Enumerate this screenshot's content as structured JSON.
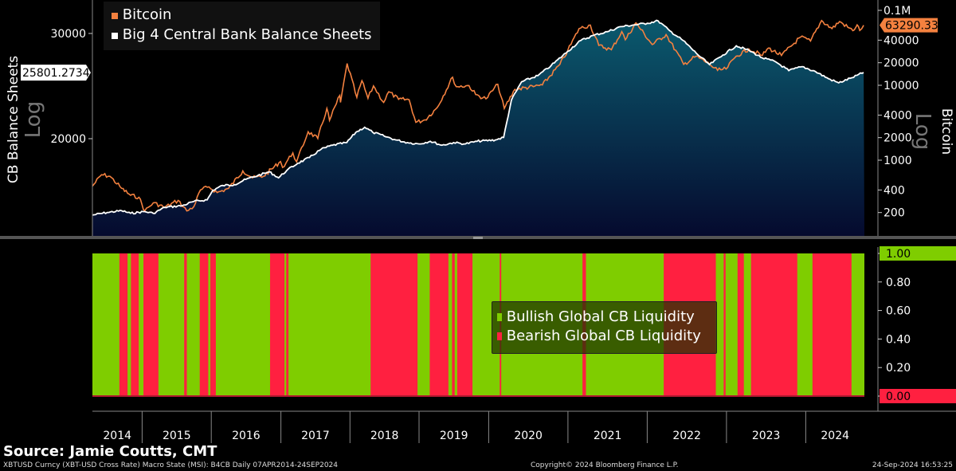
{
  "chart_data": [
    {
      "type": "line",
      "panel": "top",
      "legend": [
        "Bitcoin",
        "Big 4 Central Bank Balance Sheets"
      ],
      "legend_placement": "top-left",
      "left_axis": {
        "label": "CB Balance Sheets",
        "scale_label": "Log",
        "scale": "log",
        "ticks": [
          "30000",
          "20000"
        ],
        "range": [
          13750,
          33600
        ],
        "current_value_label": "25801.2734"
      },
      "right_axis": {
        "label": "Bitcoin",
        "scale_label": "Log",
        "scale": "log",
        "ticks": [
          "0.1M",
          "40000",
          "20000",
          "10000",
          "4000",
          "2000",
          "1000",
          "400",
          "200"
        ],
        "range": [
          98,
          122000
        ],
        "current_value_label": "63290.33"
      },
      "colors": {
        "bitcoin": "#f4813f",
        "cb": "#ffffff",
        "cb_fill_top": "#0b5a6e",
        "cb_fill_bottom": "#050a2e"
      },
      "series": [
        {
          "name": "Bitcoin",
          "axis": "right",
          "points": [
            [
              "2014-04-07",
              450
            ],
            [
              "2014-06-01",
              640
            ],
            [
              "2014-07-15",
              610
            ],
            [
              "2014-09-15",
              420
            ],
            [
              "2014-11-01",
              340
            ],
            [
              "2014-12-15",
              320
            ],
            [
              "2015-01-15",
              210
            ],
            [
              "2015-03-01",
              270
            ],
            [
              "2015-05-01",
              235
            ],
            [
              "2015-07-10",
              290
            ],
            [
              "2015-08-25",
              210
            ],
            [
              "2015-10-01",
              240
            ],
            [
              "2015-11-05",
              400
            ],
            [
              "2015-12-20",
              440
            ],
            [
              "2016-02-01",
              370
            ],
            [
              "2016-04-01",
              420
            ],
            [
              "2016-06-15",
              720
            ],
            [
              "2016-08-05",
              580
            ],
            [
              "2016-10-01",
              610
            ],
            [
              "2016-12-30",
              960
            ],
            [
              "2017-01-10",
              800
            ],
            [
              "2017-03-05",
              1250
            ],
            [
              "2017-03-25",
              950
            ],
            [
              "2017-05-25",
              2400
            ],
            [
              "2017-07-15",
              1950
            ],
            [
              "2017-09-01",
              4900
            ],
            [
              "2017-09-15",
              3400
            ],
            [
              "2017-11-08",
              7300
            ],
            [
              "2017-11-12",
              5900
            ],
            [
              "2017-12-17",
              19500
            ],
            [
              "2018-02-06",
              6900
            ],
            [
              "2018-03-05",
              11500
            ],
            [
              "2018-04-06",
              6700
            ],
            [
              "2018-05-05",
              9800
            ],
            [
              "2018-06-28",
              5900
            ],
            [
              "2018-07-25",
              8200
            ],
            [
              "2018-09-15",
              6500
            ],
            [
              "2018-11-10",
              6400
            ],
            [
              "2018-12-15",
              3200
            ],
            [
              "2019-02-01",
              3450
            ],
            [
              "2019-04-05",
              5000
            ],
            [
              "2019-06-26",
              12800
            ],
            [
              "2019-07-15",
              9600
            ],
            [
              "2019-09-20",
              9900
            ],
            [
              "2019-10-25",
              7500
            ],
            [
              "2019-12-18",
              6600
            ],
            [
              "2020-02-12",
              10300
            ],
            [
              "2020-03-13",
              4900
            ],
            [
              "2020-05-01",
              8800
            ],
            [
              "2020-07-25",
              9600
            ],
            [
              "2020-09-05",
              10100
            ],
            [
              "2020-11-25",
              19000
            ],
            [
              "2020-12-31",
              29000
            ],
            [
              "2021-02-21",
              57000
            ],
            [
              "2021-04-14",
              63500
            ],
            [
              "2021-05-23",
              34000
            ],
            [
              "2021-07-20",
              29800
            ],
            [
              "2021-09-06",
              52000
            ],
            [
              "2021-09-22",
              40500
            ],
            [
              "2021-11-10",
              68000
            ],
            [
              "2022-01-24",
              35000
            ],
            [
              "2022-03-29",
              47500
            ],
            [
              "2022-06-18",
              19000
            ],
            [
              "2022-08-14",
              24400
            ],
            [
              "2022-10-15",
              19100
            ],
            [
              "2022-11-21",
              15800
            ],
            [
              "2022-12-30",
              16500
            ],
            [
              "2023-02-15",
              24500
            ],
            [
              "2023-04-14",
              30500
            ],
            [
              "2023-06-15",
              25000
            ],
            [
              "2023-07-13",
              31400
            ],
            [
              "2023-09-11",
              25000
            ],
            [
              "2023-12-08",
              44000
            ],
            [
              "2024-01-23",
              39000
            ],
            [
              "2024-03-14",
              73000
            ],
            [
              "2024-05-01",
              57000
            ],
            [
              "2024-06-05",
              71000
            ],
            [
              "2024-08-05",
              53500
            ],
            [
              "2024-08-25",
              64000
            ],
            [
              "2024-09-06",
              53900
            ],
            [
              "2024-09-24",
              63290.33
            ]
          ]
        },
        {
          "name": "Big 4 Central Bank Balance Sheets",
          "axis": "left",
          "points": [
            [
              "2014-04-07",
              14900
            ],
            [
              "2014-07-01",
              15050
            ],
            [
              "2014-09-15",
              15150
            ],
            [
              "2014-11-01",
              15000
            ],
            [
              "2015-01-15",
              15100
            ],
            [
              "2015-03-01",
              15000
            ],
            [
              "2015-05-01",
              15350
            ],
            [
              "2015-08-01",
              15450
            ],
            [
              "2015-10-01",
              15700
            ],
            [
              "2015-12-10",
              15800
            ],
            [
              "2016-01-10",
              16400
            ],
            [
              "2016-03-01",
              16700
            ],
            [
              "2016-05-01",
              16750
            ],
            [
              "2016-07-01",
              17100
            ],
            [
              "2016-09-01",
              17350
            ],
            [
              "2016-11-01",
              17600
            ],
            [
              "2016-12-20",
              17200
            ],
            [
              "2017-02-01",
              17700
            ],
            [
              "2017-04-01",
              18200
            ],
            [
              "2017-06-01",
              18600
            ],
            [
              "2017-08-01",
              19200
            ],
            [
              "2017-10-01",
              19500
            ],
            [
              "2017-12-15",
              19700
            ],
            [
              "2018-02-01",
              20500
            ],
            [
              "2018-03-20",
              20900
            ],
            [
              "2018-05-01",
              20500
            ],
            [
              "2018-07-01",
              20200
            ],
            [
              "2018-09-01",
              19900
            ],
            [
              "2018-11-01",
              19700
            ],
            [
              "2019-01-01",
              19600
            ],
            [
              "2019-03-01",
              19800
            ],
            [
              "2019-05-01",
              19500
            ],
            [
              "2019-07-01",
              19700
            ],
            [
              "2019-09-01",
              19600
            ],
            [
              "2019-11-01",
              19800
            ],
            [
              "2020-02-01",
              19900
            ],
            [
              "2020-03-10",
              20100
            ],
            [
              "2020-04-15",
              23200
            ],
            [
              "2020-06-01",
              24900
            ],
            [
              "2020-08-15",
              25500
            ],
            [
              "2020-10-15",
              26500
            ],
            [
              "2020-12-31",
              28000
            ],
            [
              "2021-03-01",
              29200
            ],
            [
              "2021-05-01",
              29800
            ],
            [
              "2021-07-01",
              30200
            ],
            [
              "2021-09-01",
              30800
            ],
            [
              "2021-11-01",
              31000
            ],
            [
              "2022-01-01",
              31200
            ],
            [
              "2022-02-20",
              31500
            ],
            [
              "2022-04-15",
              30300
            ],
            [
              "2022-06-15",
              29200
            ],
            [
              "2022-08-15",
              27800
            ],
            [
              "2022-10-15",
              26600
            ],
            [
              "2022-12-15",
              27600
            ],
            [
              "2023-02-15",
              28600
            ],
            [
              "2023-04-15",
              28100
            ],
            [
              "2023-06-15",
              27300
            ],
            [
              "2023-08-15",
              26900
            ],
            [
              "2023-10-15",
              26000
            ],
            [
              "2023-12-15",
              26400
            ],
            [
              "2024-02-15",
              25900
            ],
            [
              "2024-04-15",
              25200
            ],
            [
              "2024-06-01",
              24800
            ],
            [
              "2024-08-01",
              25300
            ],
            [
              "2024-09-24",
              25801.2734
            ]
          ]
        }
      ]
    },
    {
      "type": "area",
      "panel": "bottom",
      "legend": [
        "Bullish Global CB Liquidity",
        "Bearish Global CB Liquidity"
      ],
      "legend_placement": "center-right",
      "right_axis": {
        "ticks": [
          "1.00",
          "0.80",
          "0.60",
          "0.40",
          "0.20",
          "0.00"
        ],
        "range": [
          0,
          1
        ],
        "current_value_top": "1.00",
        "current_value_bottom": "0.00"
      },
      "colors": {
        "bullish": "#7fcd00",
        "bearish": "#ff2040"
      },
      "default_state": "Bullish Global CB Liquidity",
      "bearish_periods": [
        [
          "2014-09-03",
          "2014-10-16"
        ],
        [
          "2014-11-03",
          "2014-12-14"
        ],
        [
          "2015-01-08",
          "2015-03-28"
        ],
        [
          "2015-08-11",
          "2015-08-25"
        ],
        [
          "2015-11-01",
          "2015-12-16"
        ],
        [
          "2015-12-27",
          "2016-01-25"
        ],
        [
          "2016-11-05",
          "2017-01-20"
        ],
        [
          "2017-01-29",
          "2017-02-10"
        ],
        [
          "2018-04-20",
          "2018-12-24"
        ],
        [
          "2019-02-26",
          "2019-06-04"
        ],
        [
          "2019-06-23",
          "2019-07-07"
        ],
        [
          "2019-07-20",
          "2019-10-08"
        ],
        [
          "2020-02-21",
          "2020-02-28"
        ],
        [
          "2021-03-09",
          "2021-03-25"
        ],
        [
          "2022-03-18",
          "2022-11-13"
        ],
        [
          "2022-12-19",
          "2022-12-28"
        ],
        [
          "2023-02-21",
          "2023-03-22"
        ],
        [
          "2023-04-24",
          "2023-11-23"
        ],
        [
          "2024-02-01",
          "2024-07-30"
        ]
      ]
    }
  ],
  "x_axis": {
    "ticks": [
      "2014",
      "2015",
      "2016",
      "2017",
      "2018",
      "2019",
      "2020",
      "2021",
      "2022",
      "2023",
      "2024"
    ],
    "range": [
      "2014-04-07",
      "2024-09-24"
    ]
  },
  "source": "Source: Jamie Coutts, CMT",
  "footer": {
    "left": "XBTUSD Curncy (XBT-USD Cross Rate) Macro State (MSI): B4CB  Daily 07APR2014-24SEP2024",
    "center": "Copyright© 2024 Bloomberg Finance L.P.",
    "right": "24-Sep-2024 16:53:25"
  }
}
